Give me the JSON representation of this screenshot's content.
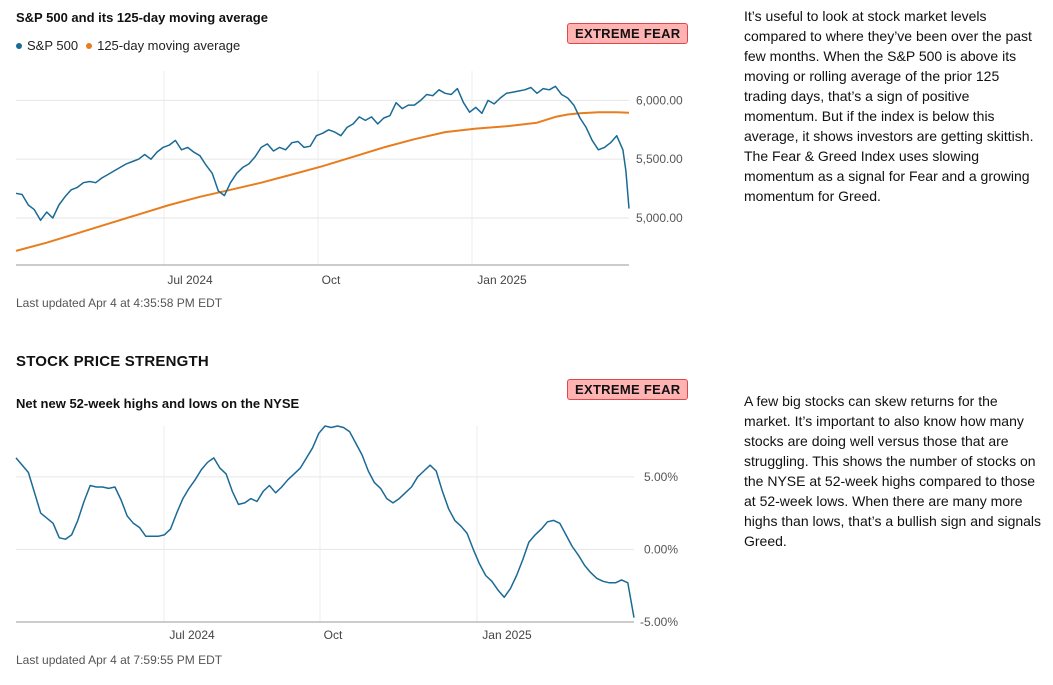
{
  "section1": {
    "title": "S&P 500 and its 125-day moving average",
    "legend": [
      "S&P 500",
      "125-day moving average"
    ],
    "badge": "EXTREME FEAR",
    "updated": "Last updated Apr 4 at 4:35:58 PM EDT",
    "description": "It’s useful to look at stock market levels compared to where they’ve been over the past few months. When the S&P 500 is above its moving or rolling average of the prior 125 trading days, that’s a sign of positive momentum. But if the index is below this average, it shows investors are getting skittish. The Fear & Greed Index uses slowing momentum as a signal for Fear and a growing momentum for Greed."
  },
  "section2": {
    "heading": "STOCK PRICE STRENGTH",
    "title": "Net new 52-week highs and lows on the NYSE",
    "badge": "EXTREME FEAR",
    "updated": "Last updated Apr 4 at 7:59:55 PM EDT",
    "description": "A few big stocks can skew returns for the market. It’s important to also know how many stocks are doing well versus those that are struggling. This shows the number of stocks on the NYSE at 52-week highs compared to those at 52-week lows. When there are many more highs than lows, that’s a bullish sign and signals Greed."
  },
  "colors": {
    "sp500": "#1a6a96",
    "ma": "#e87d1e",
    "badge_bg": "#ffb3b3",
    "badge_border": "#e04848",
    "grid": "#e6e6e6"
  },
  "chart_data": [
    {
      "type": "line",
      "title": "S&P 500 and its 125-day moving average",
      "x_tick_labels": [
        "Jul 2024",
        "Oct",
        "Jan 2025"
      ],
      "y_tick_labels": [
        "5,000.00",
        "5,500.00",
        "6,000.00"
      ],
      "ylim": [
        4600,
        6250
      ],
      "xlim": [
        0,
        1
      ],
      "series": [
        {
          "name": "S&P 500",
          "color": "#1a6a96",
          "points": [
            [
              0,
              5210
            ],
            [
              0.01,
              5200
            ],
            [
              0.02,
              5110
            ],
            [
              0.03,
              5070
            ],
            [
              0.04,
              4980
            ],
            [
              0.05,
              5050
            ],
            [
              0.06,
              5000
            ],
            [
              0.07,
              5110
            ],
            [
              0.08,
              5180
            ],
            [
              0.09,
              5240
            ],
            [
              0.1,
              5260
            ],
            [
              0.11,
              5300
            ],
            [
              0.12,
              5310
            ],
            [
              0.13,
              5300
            ],
            [
              0.14,
              5340
            ],
            [
              0.15,
              5370
            ],
            [
              0.16,
              5400
            ],
            [
              0.17,
              5430
            ],
            [
              0.18,
              5460
            ],
            [
              0.19,
              5480
            ],
            [
              0.2,
              5500
            ],
            [
              0.21,
              5540
            ],
            [
              0.22,
              5500
            ],
            [
              0.23,
              5560
            ],
            [
              0.24,
              5600
            ],
            [
              0.25,
              5620
            ],
            [
              0.26,
              5660
            ],
            [
              0.27,
              5580
            ],
            [
              0.28,
              5600
            ],
            [
              0.29,
              5560
            ],
            [
              0.3,
              5530
            ],
            [
              0.31,
              5450
            ],
            [
              0.32,
              5380
            ],
            [
              0.33,
              5230
            ],
            [
              0.34,
              5190
            ],
            [
              0.35,
              5300
            ],
            [
              0.36,
              5380
            ],
            [
              0.37,
              5430
            ],
            [
              0.38,
              5460
            ],
            [
              0.39,
              5520
            ],
            [
              0.4,
              5600
            ],
            [
              0.41,
              5630
            ],
            [
              0.42,
              5570
            ],
            [
              0.43,
              5600
            ],
            [
              0.44,
              5580
            ],
            [
              0.45,
              5640
            ],
            [
              0.46,
              5650
            ],
            [
              0.47,
              5600
            ],
            [
              0.48,
              5610
            ],
            [
              0.49,
              5700
            ],
            [
              0.5,
              5720
            ],
            [
              0.51,
              5750
            ],
            [
              0.52,
              5730
            ],
            [
              0.53,
              5700
            ],
            [
              0.54,
              5770
            ],
            [
              0.55,
              5800
            ],
            [
              0.56,
              5860
            ],
            [
              0.57,
              5830
            ],
            [
              0.58,
              5860
            ],
            [
              0.59,
              5800
            ],
            [
              0.6,
              5850
            ],
            [
              0.61,
              5870
            ],
            [
              0.62,
              5980
            ],
            [
              0.63,
              5930
            ],
            [
              0.64,
              5960
            ],
            [
              0.65,
              5960
            ],
            [
              0.66,
              6000
            ],
            [
              0.67,
              6050
            ],
            [
              0.68,
              6040
            ],
            [
              0.69,
              6090
            ],
            [
              0.7,
              6060
            ],
            [
              0.71,
              6050
            ],
            [
              0.72,
              6100
            ],
            [
              0.73,
              5980
            ],
            [
              0.74,
              5900
            ],
            [
              0.75,
              5940
            ],
            [
              0.76,
              5890
            ],
            [
              0.77,
              6000
            ],
            [
              0.78,
              5970
            ],
            [
              0.79,
              6020
            ],
            [
              0.8,
              6060
            ],
            [
              0.81,
              6070
            ],
            [
              0.82,
              6080
            ],
            [
              0.83,
              6090
            ],
            [
              0.84,
              6110
            ],
            [
              0.85,
              6060
            ],
            [
              0.86,
              6100
            ],
            [
              0.87,
              6090
            ],
            [
              0.88,
              6120
            ],
            [
              0.89,
              6050
            ],
            [
              0.9,
              6020
            ],
            [
              0.91,
              5960
            ],
            [
              0.92,
              5850
            ],
            [
              0.93,
              5770
            ],
            [
              0.94,
              5660
            ],
            [
              0.95,
              5580
            ],
            [
              0.96,
              5600
            ],
            [
              0.97,
              5640
            ],
            [
              0.98,
              5700
            ],
            [
              0.99,
              5580
            ],
            [
              0.995,
              5400
            ],
            [
              1.0,
              5080
            ]
          ]
        },
        {
          "name": "125-day moving average",
          "color": "#e87d1e",
          "points": [
            [
              0,
              4720
            ],
            [
              0.05,
              4790
            ],
            [
              0.1,
              4870
            ],
            [
              0.15,
              4950
            ],
            [
              0.2,
              5030
            ],
            [
              0.25,
              5110
            ],
            [
              0.3,
              5180
            ],
            [
              0.35,
              5240
            ],
            [
              0.4,
              5300
            ],
            [
              0.45,
              5370
            ],
            [
              0.5,
              5440
            ],
            [
              0.55,
              5520
            ],
            [
              0.6,
              5600
            ],
            [
              0.65,
              5670
            ],
            [
              0.7,
              5730
            ],
            [
              0.75,
              5760
            ],
            [
              0.8,
              5780
            ],
            [
              0.85,
              5810
            ],
            [
              0.88,
              5860
            ],
            [
              0.9,
              5880
            ],
            [
              0.92,
              5890
            ],
            [
              0.95,
              5900
            ],
            [
              0.98,
              5900
            ],
            [
              1.0,
              5895
            ]
          ]
        }
      ]
    },
    {
      "type": "line",
      "title": "Net new 52-week highs and lows on the NYSE",
      "x_tick_labels": [
        "Jul 2024",
        "Oct",
        "Jan 2025"
      ],
      "y_tick_labels": [
        "5.00%",
        "0.00%",
        "-5.00%"
      ],
      "ylim": [
        -5,
        8.5
      ],
      "xlim": [
        0,
        1
      ],
      "series": [
        {
          "color": "#1a6a96",
          "points": [
            [
              0,
              6.3
            ],
            [
              0.02,
              5.3
            ],
            [
              0.04,
              2.5
            ],
            [
              0.06,
              1.8
            ],
            [
              0.07,
              0.8
            ],
            [
              0.08,
              0.7
            ],
            [
              0.09,
              1.0
            ],
            [
              0.1,
              2.0
            ],
            [
              0.11,
              3.3
            ],
            [
              0.12,
              4.4
            ],
            [
              0.13,
              4.3
            ],
            [
              0.14,
              4.3
            ],
            [
              0.15,
              4.2
            ],
            [
              0.16,
              4.3
            ],
            [
              0.17,
              3.4
            ],
            [
              0.18,
              2.3
            ],
            [
              0.19,
              1.8
            ],
            [
              0.2,
              1.5
            ],
            [
              0.21,
              0.9
            ],
            [
              0.22,
              0.9
            ],
            [
              0.23,
              0.9
            ],
            [
              0.24,
              1.0
            ],
            [
              0.25,
              1.4
            ],
            [
              0.26,
              2.5
            ],
            [
              0.27,
              3.5
            ],
            [
              0.28,
              4.2
            ],
            [
              0.29,
              4.8
            ],
            [
              0.3,
              5.5
            ],
            [
              0.31,
              6.0
            ],
            [
              0.32,
              6.3
            ],
            [
              0.33,
              5.6
            ],
            [
              0.34,
              5.2
            ],
            [
              0.35,
              4.0
            ],
            [
              0.36,
              3.1
            ],
            [
              0.37,
              3.2
            ],
            [
              0.38,
              3.5
            ],
            [
              0.39,
              3.3
            ],
            [
              0.4,
              4.0
            ],
            [
              0.41,
              4.4
            ],
            [
              0.42,
              3.9
            ],
            [
              0.43,
              4.3
            ],
            [
              0.44,
              4.8
            ],
            [
              0.45,
              5.2
            ],
            [
              0.46,
              5.6
            ],
            [
              0.47,
              6.3
            ],
            [
              0.48,
              7.0
            ],
            [
              0.49,
              8.0
            ],
            [
              0.5,
              8.5
            ],
            [
              0.51,
              8.4
            ],
            [
              0.52,
              8.5
            ],
            [
              0.53,
              8.4
            ],
            [
              0.54,
              8.1
            ],
            [
              0.55,
              7.3
            ],
            [
              0.56,
              6.5
            ],
            [
              0.57,
              5.4
            ],
            [
              0.58,
              4.6
            ],
            [
              0.59,
              4.2
            ],
            [
              0.6,
              3.5
            ],
            [
              0.61,
              3.2
            ],
            [
              0.62,
              3.5
            ],
            [
              0.63,
              3.9
            ],
            [
              0.64,
              4.3
            ],
            [
              0.65,
              5.0
            ],
            [
              0.66,
              5.4
            ],
            [
              0.67,
              5.8
            ],
            [
              0.68,
              5.4
            ],
            [
              0.69,
              4.0
            ],
            [
              0.7,
              2.8
            ],
            [
              0.71,
              2.0
            ],
            [
              0.72,
              1.6
            ],
            [
              0.73,
              1.1
            ],
            [
              0.74,
              0.0
            ],
            [
              0.75,
              -1.0
            ],
            [
              0.76,
              -1.8
            ],
            [
              0.77,
              -2.2
            ],
            [
              0.78,
              -2.8
            ],
            [
              0.79,
              -3.3
            ],
            [
              0.8,
              -2.7
            ],
            [
              0.81,
              -1.8
            ],
            [
              0.82,
              -0.7
            ],
            [
              0.83,
              0.5
            ],
            [
              0.84,
              1.0
            ],
            [
              0.85,
              1.4
            ],
            [
              0.86,
              1.9
            ],
            [
              0.87,
              2.0
            ],
            [
              0.88,
              1.8
            ],
            [
              0.89,
              1.0
            ],
            [
              0.9,
              0.2
            ],
            [
              0.91,
              -0.4
            ],
            [
              0.92,
              -1.1
            ],
            [
              0.93,
              -1.6
            ],
            [
              0.94,
              -2.0
            ],
            [
              0.95,
              -2.2
            ],
            [
              0.96,
              -2.3
            ],
            [
              0.97,
              -2.3
            ],
            [
              0.98,
              -2.1
            ],
            [
              0.99,
              -2.3
            ],
            [
              1.0,
              -4.7
            ]
          ]
        }
      ]
    }
  ]
}
